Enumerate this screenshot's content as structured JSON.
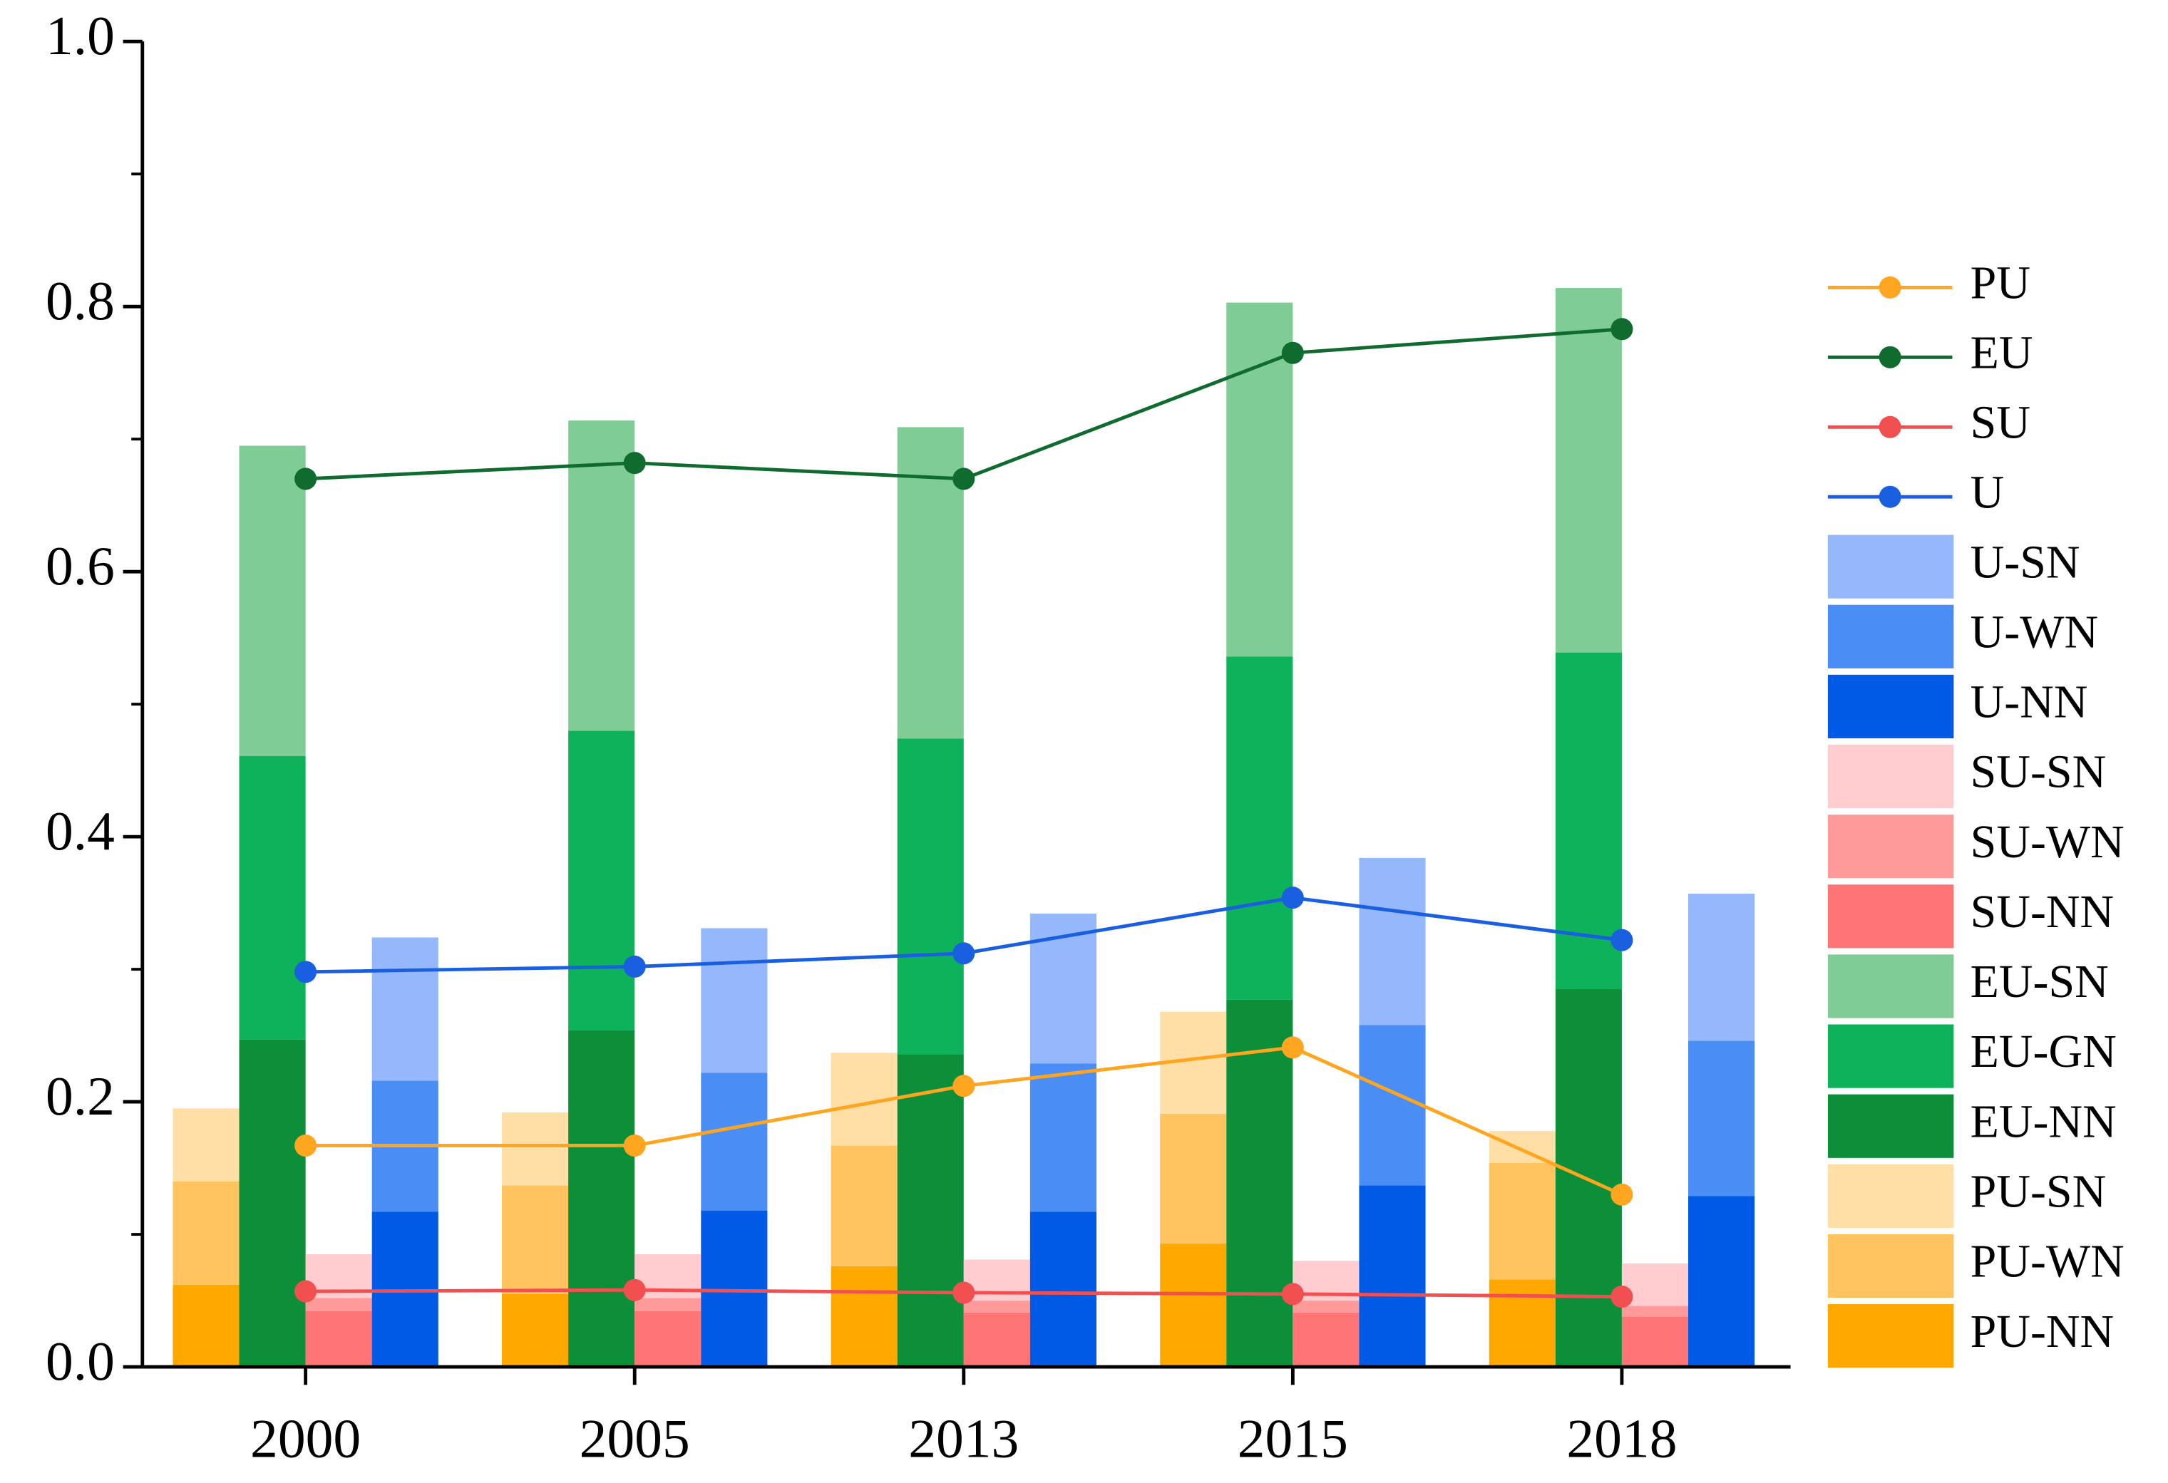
{
  "chart_data": {
    "type": "bar",
    "categories": [
      "2000",
      "2005",
      "2013",
      "2015",
      "2018"
    ],
    "ylim": [
      0,
      1
    ],
    "yticks": [
      {
        "value": 0,
        "label": "0.0"
      },
      0.2,
      0.4,
      0.6,
      0.8,
      {
        "value": 1,
        "label": "1.0"
      }
    ],
    "line_series": [
      {
        "name": "PU",
        "color": "#ffa51f",
        "values": [
          0.167,
          0.167,
          0.212,
          0.241,
          0.13
        ]
      },
      {
        "name": "EU",
        "color": "#0f6b2e",
        "values": [
          0.67,
          0.682,
          0.67,
          0.765,
          0.783
        ]
      },
      {
        "name": "SU",
        "color": "#f25050",
        "values": [
          0.057,
          0.058,
          0.056,
          0.055,
          0.053
        ]
      },
      {
        "name": "U",
        "color": "#1a5fe0",
        "values": [
          0.298,
          0.302,
          0.312,
          0.354,
          0.322
        ]
      }
    ],
    "bar_series": [
      {
        "name": "U-SN",
        "stack": "U",
        "color": "#94b8fb",
        "values": [
          0.108,
          0.109,
          0.113,
          0.126,
          0.111
        ]
      },
      {
        "name": "U-WN",
        "stack": "U",
        "color": "#4a8ef5",
        "values": [
          0.099,
          0.104,
          0.112,
          0.121,
          0.117
        ]
      },
      {
        "name": "U-NN",
        "stack": "U",
        "color": "#005ae6",
        "values": [
          0.117,
          0.118,
          0.117,
          0.137,
          0.129
        ]
      },
      {
        "name": "SU-SN",
        "stack": "SU",
        "color": "#ffccd0",
        "values": [
          0.033,
          0.033,
          0.031,
          0.03,
          0.032
        ]
      },
      {
        "name": "SU-WN",
        "stack": "SU",
        "color": "#ff9a9a",
        "values": [
          0.01,
          0.01,
          0.009,
          0.009,
          0.008
        ]
      },
      {
        "name": "SU-NN",
        "stack": "SU",
        "color": "#ff7575",
        "values": [
          0.042,
          0.042,
          0.041,
          0.041,
          0.038
        ]
      },
      {
        "name": "EU-SN",
        "stack": "EU",
        "color": "#7fcc96",
        "values": [
          0.234,
          0.234,
          0.235,
          0.267,
          0.275
        ]
      },
      {
        "name": "EU-GN",
        "stack": "EU",
        "color": "#0db25a",
        "values": [
          0.214,
          0.226,
          0.238,
          0.259,
          0.254
        ]
      },
      {
        "name": "EU-NN",
        "stack": "EU",
        "color": "#0d8f3a",
        "values": [
          0.247,
          0.254,
          0.236,
          0.277,
          0.285
        ]
      },
      {
        "name": "PU-SN",
        "stack": "PU",
        "color": "#ffdfa6",
        "values": [
          0.055,
          0.055,
          0.07,
          0.077,
          0.024
        ]
      },
      {
        "name": "PU-WN",
        "stack": "PU",
        "color": "#ffc460",
        "values": [
          0.078,
          0.082,
          0.091,
          0.098,
          0.088
        ]
      },
      {
        "name": "PU-NN",
        "stack": "PU",
        "color": "#ffa800",
        "values": [
          0.062,
          0.055,
          0.076,
          0.093,
          0.066
        ]
      }
    ]
  }
}
